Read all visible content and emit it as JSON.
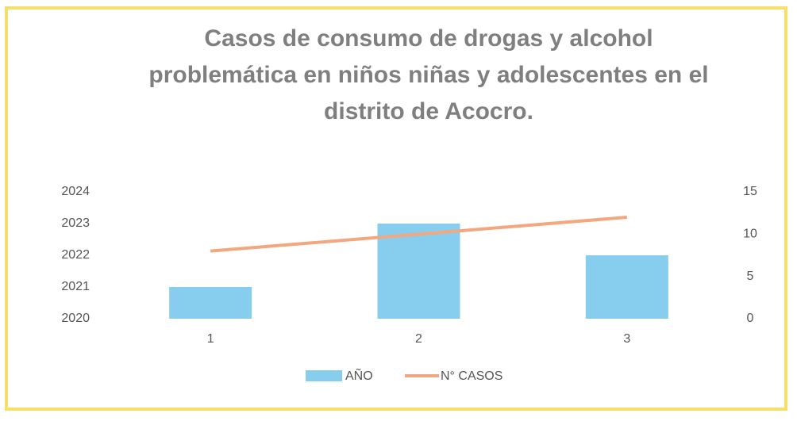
{
  "chart_data": {
    "type": "bar_line",
    "title": "Casos de consumo de drogas y alcohol problemática en niños niñas y adolescentes en el distrito de Acocro.",
    "categories": [
      "1",
      "2",
      "3"
    ],
    "series": [
      {
        "name": "AÑO",
        "color": "#86cdee",
        "type": "bar",
        "values": [
          2021,
          2023,
          2022
        ]
      },
      {
        "name": "N° CASOS",
        "color": "#f2a77e",
        "type": "line",
        "axis": "y2",
        "values": [
          8,
          10,
          12
        ]
      }
    ],
    "ylim": [
      2020,
      2024
    ],
    "yticks": [
      2020,
      2021,
      2022,
      2023,
      2024
    ],
    "y2lim": [
      0,
      15
    ],
    "y2ticks": [
      0,
      5,
      10,
      15
    ],
    "legend": "bottom"
  }
}
